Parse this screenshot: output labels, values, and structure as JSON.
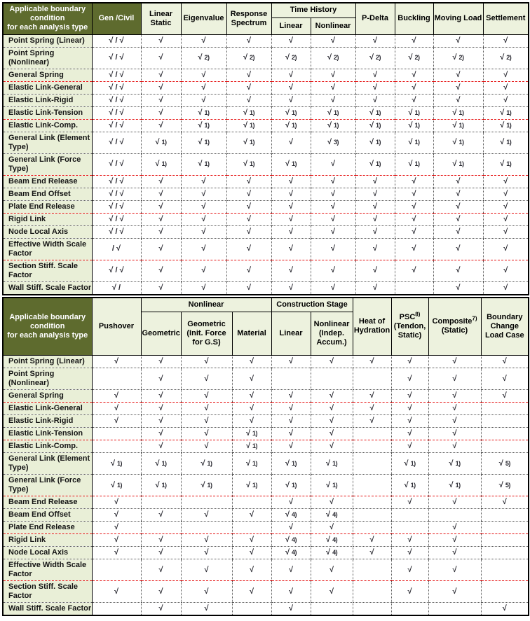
{
  "colors": {
    "header_dark_bg": "#5e6b2e",
    "header_light_bg": "#edf2de",
    "label_bg": "#e9efd7",
    "check_color": "#26262e",
    "red_separator": "#e51010"
  },
  "tables": [
    {
      "corner_label": "Applicable boundary\ncondition\nfor each analysis type",
      "columns": [
        {
          "label": "Gen /Civil",
          "dark": true
        },
        {
          "label": "Linear Static"
        },
        {
          "label": "Eigenvalue"
        },
        {
          "label": "Response Spectrum"
        },
        {
          "group": "Time History",
          "children": [
            {
              "label": "Linear"
            },
            {
              "label": "Nonlinear"
            }
          ]
        },
        {
          "label": "P-Delta"
        },
        {
          "label": "Buckling"
        },
        {
          "label": "Moving Load"
        },
        {
          "label": "Settlement"
        }
      ],
      "rows": [
        {
          "label": "Point Spring (Linear)",
          "cells": [
            "√ / √",
            "√",
            "√",
            "√",
            "√",
            "√",
            "√",
            "√",
            "√",
            "√"
          ]
        },
        {
          "label": "Point Spring (Nonlinear)",
          "cells": [
            "√ / √",
            "√",
            "√ 2)",
            "√ 2)",
            "√ 2)",
            "√ 2)",
            "√ 2)",
            "√ 2)",
            "√ 2)",
            "√ 2)"
          ]
        },
        {
          "label": "General Spring",
          "cells": [
            "√ / √",
            "√",
            "√",
            "√",
            "√",
            "√",
            "√",
            "√",
            "√",
            "√"
          ],
          "red_sep": true
        },
        {
          "label": "Elastic Link-General",
          "cells": [
            "√ / √",
            "√",
            "√",
            "√",
            "√",
            "√",
            "√",
            "√",
            "√",
            "√"
          ]
        },
        {
          "label": "Elastic Link-Rigid",
          "cells": [
            "√ / √",
            "√",
            "√",
            "√",
            "√",
            "√",
            "√",
            "√",
            "√",
            "√"
          ]
        },
        {
          "label": "Elastic Link-Tension",
          "cells": [
            "√ / √",
            "√",
            "√ 1)",
            "√ 1)",
            "√ 1)",
            "√ 1)",
            "√ 1)",
            "√ 1)",
            "√ 1)",
            "√ 1)"
          ],
          "red_sep": true
        },
        {
          "label": "Elastic Link-Comp.",
          "cells": [
            "√ / √",
            "√",
            "√ 1)",
            "√ 1)",
            "√ 1)",
            "√ 1)",
            "√ 1)",
            "√ 1)",
            "√ 1)",
            "√ 1)"
          ]
        },
        {
          "label": "General Link (Element Type)",
          "cells": [
            "√ / √",
            "√ 1)",
            "√ 1)",
            "√ 1)",
            "√",
            "√ 3)",
            "√ 1)",
            "√ 1)",
            "√ 1)",
            "√ 1)"
          ]
        },
        {
          "label": "General Link (Force Type)",
          "cells": [
            "√ / √",
            "√ 1)",
            "√ 1)",
            "√ 1)",
            "√ 1)",
            "√",
            "√ 1)",
            "√ 1)",
            "√ 1)",
            "√ 1)"
          ],
          "red_sep": true
        },
        {
          "label": "Beam End Release",
          "cells": [
            "√ / √",
            "√",
            "√",
            "√",
            "√",
            "√",
            "√",
            "√",
            "√",
            "√"
          ]
        },
        {
          "label": "Beam End Offset",
          "cells": [
            "√ / √",
            "√",
            "√",
            "√",
            "√",
            "√",
            "√",
            "√",
            "√",
            "√"
          ]
        },
        {
          "label": "Plate End Release",
          "cells": [
            "√ / √",
            "√",
            "√",
            "√",
            "√",
            "√",
            "√",
            "√",
            "√",
            "√"
          ],
          "red_sep": true
        },
        {
          "label": "Rigid Link",
          "cells": [
            "√ / √",
            "√",
            "√",
            "√",
            "√",
            "√",
            "√",
            "√",
            "√",
            "√"
          ]
        },
        {
          "label": "Node Local Axis",
          "cells": [
            "√ / √",
            "√",
            "√",
            "√",
            "√",
            "√",
            "√",
            "√",
            "√",
            "√"
          ]
        },
        {
          "label": "Effective Width Scale Factor",
          "cells": [
            "/ √",
            "√",
            "√",
            "√",
            "√",
            "√",
            "√",
            "√",
            "√",
            "√"
          ],
          "red_sep": true
        },
        {
          "label": "Section Stiff. Scale Factor",
          "cells": [
            "√ / √",
            "√",
            "√",
            "√",
            "√",
            "√",
            "√",
            "√",
            "√",
            "√"
          ]
        },
        {
          "label": "Wall Stiff. Scale Factor",
          "cells": [
            "√ /",
            "√",
            "√",
            "√",
            "√",
            "√",
            "√",
            "",
            "√",
            "√"
          ],
          "nowrap": true
        }
      ]
    },
    {
      "corner_label": "Applicable boundary\ncondition\nfor each analysis type",
      "columns": [
        {
          "label": "Pushover"
        },
        {
          "group": "Nonlinear",
          "children": [
            {
              "label": "Geometric"
            },
            {
              "label": "Geometric (Init. Force for G.S)"
            },
            {
              "label": "Material"
            }
          ]
        },
        {
          "group": "Construction Stage",
          "children": [
            {
              "label": "Linear"
            },
            {
              "label": "Nonlinear (Indep. Accum.)"
            }
          ]
        },
        {
          "label": "Heat of Hydration"
        },
        {
          "label": "PSC",
          "sup": "8)",
          "label2": "(Tendon, Static)"
        },
        {
          "label": "Composite",
          "sup": "7)",
          "label2": "(Static)"
        },
        {
          "label": "Boundary Change Load Case"
        }
      ],
      "rows": [
        {
          "label": "Point Spring (Linear)",
          "cells": [
            "√",
            "√",
            "√",
            "√",
            "√",
            "√",
            "√",
            "√",
            "√",
            "√"
          ]
        },
        {
          "label": "Point Spring (Nonlinear)",
          "cells": [
            "",
            "√",
            "√",
            "√",
            "",
            "",
            "",
            "√",
            "√",
            "√"
          ]
        },
        {
          "label": "General Spring",
          "cells": [
            "√",
            "√",
            "√",
            "√",
            "√",
            "√",
            "√",
            "√",
            "√",
            "√"
          ],
          "red_sep": true
        },
        {
          "label": "Elastic Link-General",
          "cells": [
            "√",
            "√",
            "√",
            "√",
            "√",
            "√",
            "√",
            "√",
            "√",
            ""
          ]
        },
        {
          "label": "Elastic Link-Rigid",
          "cells": [
            "√",
            "√",
            "√",
            "√",
            "√",
            "√",
            "√",
            "√",
            "√",
            ""
          ]
        },
        {
          "label": "Elastic Link-Tension",
          "cells": [
            "",
            "√",
            "√",
            "√ 1)",
            "√",
            "√",
            "",
            "√",
            "√",
            ""
          ],
          "red_sep": true
        },
        {
          "label": "Elastic Link-Comp.",
          "cells": [
            "",
            "√",
            "√",
            "√ 1)",
            "√",
            "√",
            "",
            "√",
            "√",
            ""
          ]
        },
        {
          "label": "General Link (Element Type)",
          "cells": [
            "√ 1)",
            "√ 1)",
            "√ 1)",
            "√ 1)",
            "√ 1)",
            "√ 1)",
            "",
            "√ 1)",
            "√ 1)",
            "√ 5)"
          ]
        },
        {
          "label": "General Link (Force Type)",
          "cells": [
            "√ 1)",
            "√ 1)",
            "√ 1)",
            "√ 1)",
            "√ 1)",
            "√ 1)",
            "",
            "√ 1)",
            "√ 1)",
            "√ 5)"
          ],
          "red_sep": true
        },
        {
          "label": "Beam End Release",
          "cells": [
            "√",
            "",
            "",
            "",
            "√",
            "√",
            "",
            "√",
            "√",
            "√"
          ]
        },
        {
          "label": "Beam End Offset",
          "cells": [
            "√",
            "√",
            "√",
            "√",
            "√ 4)",
            "√ 4)",
            "",
            "",
            "",
            ""
          ]
        },
        {
          "label": "Plate End Release",
          "cells": [
            "√",
            "",
            "",
            "",
            "√",
            "√",
            "",
            "",
            "√",
            ""
          ],
          "red_sep": true
        },
        {
          "label": "Rigid Link",
          "cells": [
            "√",
            "√",
            "√",
            "√",
            "√ 4)",
            "√ 4)",
            "√",
            "√",
            "√",
            ""
          ]
        },
        {
          "label": "Node Local Axis",
          "cells": [
            "√",
            "√",
            "√",
            "√",
            "√ 4)",
            "√ 4)",
            "√",
            "√",
            "√",
            ""
          ]
        },
        {
          "label": "Effective Width Scale Factor",
          "cells": [
            "",
            "√",
            "√",
            "√",
            "√",
            "√",
            "",
            "√",
            "√",
            ""
          ],
          "red_sep": true
        },
        {
          "label": "Section Stiff. Scale Factor",
          "cells": [
            "√",
            "√",
            "√",
            "√",
            "√",
            "√",
            "",
            "√",
            "√",
            ""
          ]
        },
        {
          "label": "Wall Stiff. Scale Factor",
          "cells": [
            "",
            "√",
            "√",
            "",
            "√",
            "",
            "",
            "",
            "",
            "√"
          ],
          "nowrap": true
        }
      ]
    }
  ]
}
